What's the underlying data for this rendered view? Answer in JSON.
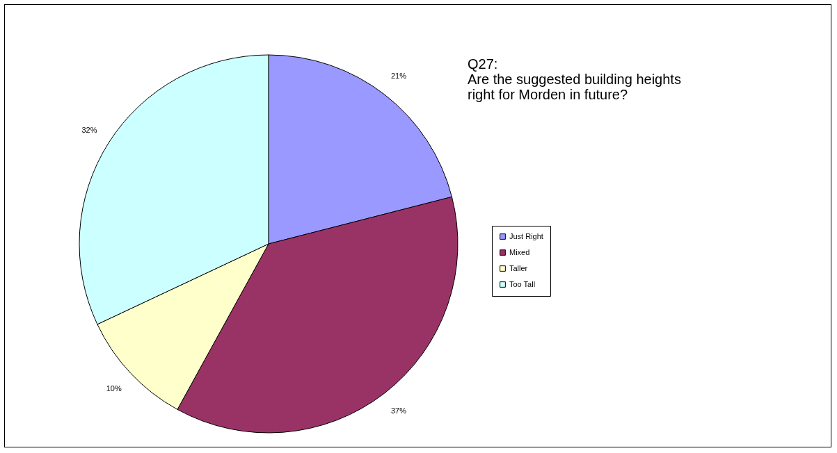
{
  "chart_data": {
    "type": "pie",
    "title": "Q27:",
    "subtitle": "Are the suggested building heights right for Morden in future?",
    "categories": [
      "Just Right",
      "Mixed",
      "Taller",
      "Too Tall"
    ],
    "values": [
      21,
      37,
      10,
      32
    ],
    "value_labels": [
      "21%",
      "37%",
      "10%",
      "32%"
    ],
    "colors": [
      "#9999ff",
      "#993366",
      "#ffffcc",
      "#ccffff"
    ],
    "legend": "right"
  }
}
